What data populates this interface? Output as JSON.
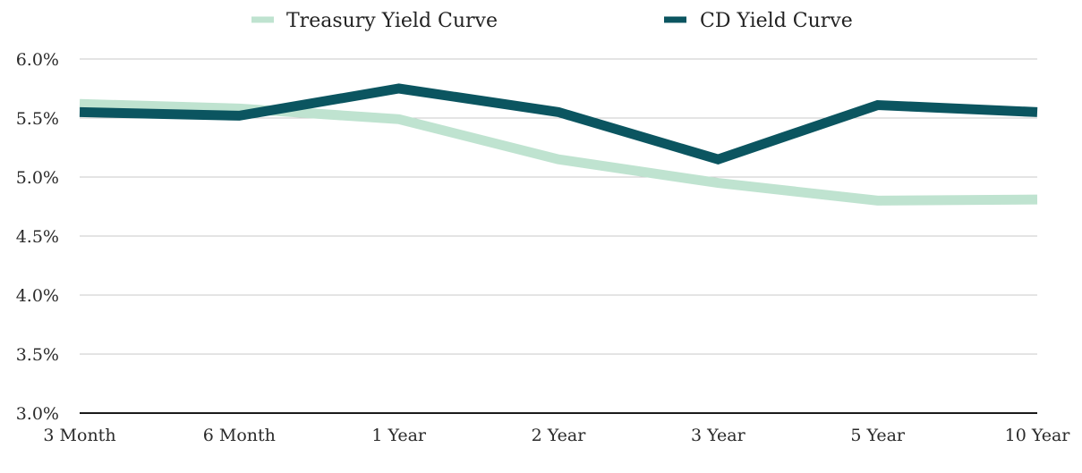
{
  "chart_data": {
    "type": "line",
    "categories": [
      "3 Month",
      "6 Month",
      "1 Year",
      "2 Year",
      "3 Year",
      "5 Year",
      "10 Year"
    ],
    "series": [
      {
        "name": "Treasury Yield Curve",
        "color": "#bfe3d0",
        "values": [
          5.62,
          5.58,
          5.49,
          5.15,
          4.95,
          4.8,
          4.81
        ]
      },
      {
        "name": "CD Yield Curve",
        "color": "#0b5560",
        "values": [
          5.55,
          5.52,
          5.75,
          5.55,
          5.15,
          5.61,
          5.55
        ]
      }
    ],
    "y_ticks": [
      "6.0%",
      "5.5%",
      "5.0%",
      "4.5%",
      "4.0%",
      "3.5%",
      "3.0%"
    ],
    "y_tick_values": [
      6.0,
      5.5,
      5.0,
      4.5,
      4.0,
      3.5,
      3.0
    ],
    "ylim": [
      3.0,
      6.0
    ],
    "grid": true,
    "legend_position": "top-center",
    "title": "",
    "xlabel": "",
    "ylabel": ""
  }
}
